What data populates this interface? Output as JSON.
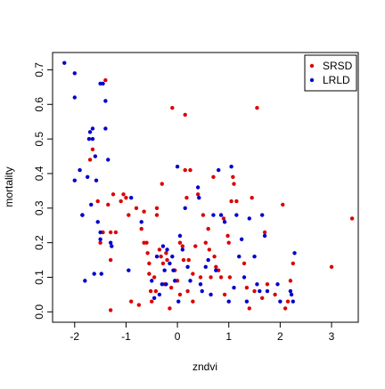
{
  "chart_data": {
    "type": "scatter",
    "title": "",
    "xlabel": "zndvi",
    "ylabel": "mortality",
    "xlim": [
      -2.43,
      3.52
    ],
    "ylim": [
      -0.03,
      0.75
    ],
    "xticks": [
      -2,
      -1,
      0,
      1,
      2,
      3
    ],
    "yticks": [
      0.0,
      0.1,
      0.2,
      0.3,
      0.4,
      0.5,
      0.6,
      0.7
    ],
    "grid": false,
    "legend_position": "top-right",
    "series": [
      {
        "name": "SRSD",
        "color": "#dd0000",
        "points": [
          [
            -1.7,
            0.44
          ],
          [
            -1.65,
            0.47
          ],
          [
            -1.55,
            0.32
          ],
          [
            -1.5,
            0.2
          ],
          [
            -1.45,
            0.23
          ],
          [
            -1.4,
            0.67
          ],
          [
            -1.35,
            0.31
          ],
          [
            -1.3,
            0.23
          ],
          [
            -1.3,
            0.15
          ],
          [
            -1.3,
            0.005
          ],
          [
            -1.25,
            0.34
          ],
          [
            -1.2,
            0.23
          ],
          [
            -1.1,
            0.32
          ],
          [
            -1.05,
            0.34
          ],
          [
            -1.0,
            0.33
          ],
          [
            -0.95,
            0.28
          ],
          [
            -0.9,
            0.03
          ],
          [
            -0.8,
            0.3
          ],
          [
            -0.75,
            0.02
          ],
          [
            -0.7,
            0.24
          ],
          [
            -0.65,
            0.29
          ],
          [
            -0.65,
            0.2
          ],
          [
            -0.6,
            0.2
          ],
          [
            -0.58,
            0.17
          ],
          [
            -0.55,
            0.14
          ],
          [
            -0.55,
            0.11
          ],
          [
            -0.52,
            0.06
          ],
          [
            -0.5,
            0.03
          ],
          [
            -0.45,
            0.1
          ],
          [
            -0.42,
            0.06
          ],
          [
            -0.4,
            0.3
          ],
          [
            -0.4,
            0.28
          ],
          [
            -0.35,
            0.18
          ],
          [
            -0.32,
            0.16
          ],
          [
            -0.3,
            0.37
          ],
          [
            -0.28,
            0.14
          ],
          [
            -0.25,
            0.08
          ],
          [
            -0.22,
            0.17
          ],
          [
            -0.2,
            0.15
          ],
          [
            -0.15,
            0.01
          ],
          [
            -0.12,
            0.07
          ],
          [
            -0.1,
            0.59
          ],
          [
            -0.05,
            0.12
          ],
          [
            0.0,
            0.09
          ],
          [
            0.05,
            0.2
          ],
          [
            0.05,
            0.05
          ],
          [
            0.1,
            0.19
          ],
          [
            0.12,
            0.15
          ],
          [
            0.15,
            0.57
          ],
          [
            0.15,
            0.41
          ],
          [
            0.18,
            0.33
          ],
          [
            0.2,
            0.06
          ],
          [
            0.22,
            0.15
          ],
          [
            0.25,
            0.41
          ],
          [
            0.3,
            0.11
          ],
          [
            0.3,
            0.03
          ],
          [
            0.35,
            0.19
          ],
          [
            0.4,
            0.34
          ],
          [
            0.45,
            0.1
          ],
          [
            0.5,
            0.28
          ],
          [
            0.55,
            0.2
          ],
          [
            0.6,
            0.24
          ],
          [
            0.62,
            0.18
          ],
          [
            0.65,
            0.1
          ],
          [
            0.7,
            0.39
          ],
          [
            0.72,
            0.16
          ],
          [
            0.75,
            0.13
          ],
          [
            0.8,
            0.12
          ],
          [
            0.85,
            0.1
          ],
          [
            0.9,
            0.27
          ],
          [
            0.92,
            0.05
          ],
          [
            0.98,
            0.22
          ],
          [
            1.0,
            0.2
          ],
          [
            1.02,
            0.1
          ],
          [
            1.05,
            0.32
          ],
          [
            1.08,
            0.39
          ],
          [
            1.1,
            0.37
          ],
          [
            1.15,
            0.32
          ],
          [
            1.3,
            0.14
          ],
          [
            1.35,
            0.07
          ],
          [
            1.4,
            0.01
          ],
          [
            1.45,
            0.33
          ],
          [
            1.5,
            0.06
          ],
          [
            1.55,
            0.59
          ],
          [
            1.65,
            0.04
          ],
          [
            1.7,
            0.23
          ],
          [
            1.75,
            0.08
          ],
          [
            1.9,
            0.05
          ],
          [
            2.05,
            0.31
          ],
          [
            2.1,
            0.01
          ],
          [
            2.15,
            0.03
          ],
          [
            2.2,
            0.09
          ],
          [
            2.25,
            0.14
          ],
          [
            3.0,
            0.13
          ],
          [
            3.4,
            0.27
          ]
        ]
      },
      {
        "name": "LRLD",
        "color": "#0000cc",
        "points": [
          [
            -2.2,
            0.72
          ],
          [
            -2.0,
            0.69
          ],
          [
            -2.0,
            0.62
          ],
          [
            -2.0,
            0.38
          ],
          [
            -1.9,
            0.41
          ],
          [
            -1.85,
            0.28
          ],
          [
            -1.85,
            0.28
          ],
          [
            -1.8,
            0.09
          ],
          [
            -1.75,
            0.39
          ],
          [
            -1.72,
            0.5
          ],
          [
            -1.7,
            0.52
          ],
          [
            -1.68,
            0.31
          ],
          [
            -1.65,
            0.53
          ],
          [
            -1.65,
            0.5
          ],
          [
            -1.62,
            0.11
          ],
          [
            -1.6,
            0.45
          ],
          [
            -1.58,
            0.38
          ],
          [
            -1.55,
            0.26
          ],
          [
            -1.5,
            0.66
          ],
          [
            -1.5,
            0.23
          ],
          [
            -1.5,
            0.21
          ],
          [
            -1.48,
            0.11
          ],
          [
            -1.45,
            0.66
          ],
          [
            -1.4,
            0.61
          ],
          [
            -1.4,
            0.53
          ],
          [
            -1.35,
            0.44
          ],
          [
            -1.3,
            0.2
          ],
          [
            -1.28,
            0.19
          ],
          [
            -0.95,
            0.12
          ],
          [
            -0.9,
            0.33
          ],
          [
            -0.7,
            0.26
          ],
          [
            -0.5,
            0.09
          ],
          [
            -0.45,
            0.04
          ],
          [
            -0.4,
            0.16
          ],
          [
            -0.35,
            0.05
          ],
          [
            -0.3,
            0.08
          ],
          [
            -0.28,
            0.19
          ],
          [
            -0.25,
            0.12
          ],
          [
            -0.22,
            0.08
          ],
          [
            -0.2,
            0.18
          ],
          [
            -0.15,
            0.14
          ],
          [
            -0.1,
            0.16
          ],
          [
            -0.08,
            0.12
          ],
          [
            -0.05,
            0.09
          ],
          [
            0.0,
            0.42
          ],
          [
            0.02,
            0.03
          ],
          [
            0.05,
            0.22
          ],
          [
            0.1,
            0.18
          ],
          [
            0.15,
            0.3
          ],
          [
            0.2,
            0.13
          ],
          [
            0.25,
            0.09
          ],
          [
            0.4,
            0.36
          ],
          [
            0.42,
            0.33
          ],
          [
            0.45,
            0.08
          ],
          [
            0.48,
            0.06
          ],
          [
            0.55,
            0.13
          ],
          [
            0.6,
            0.15
          ],
          [
            0.65,
            0.05
          ],
          [
            0.7,
            0.28
          ],
          [
            0.75,
            0.12
          ],
          [
            0.8,
            0.41
          ],
          [
            0.85,
            0.28
          ],
          [
            0.92,
            0.26
          ],
          [
            1.0,
            0.03
          ],
          [
            1.05,
            0.42
          ],
          [
            1.1,
            0.07
          ],
          [
            1.15,
            0.28
          ],
          [
            1.2,
            0.16
          ],
          [
            1.25,
            0.21
          ],
          [
            1.3,
            0.1
          ],
          [
            1.35,
            0.03
          ],
          [
            1.4,
            0.27
          ],
          [
            1.5,
            0.16
          ],
          [
            1.55,
            0.08
          ],
          [
            1.6,
            0.06
          ],
          [
            1.65,
            0.28
          ],
          [
            1.7,
            0.22
          ],
          [
            1.75,
            0.06
          ],
          [
            1.95,
            0.08
          ],
          [
            2.0,
            0.03
          ],
          [
            2.2,
            0.06
          ],
          [
            2.22,
            0.05
          ],
          [
            2.25,
            0.03
          ],
          [
            2.28,
            0.17
          ]
        ]
      }
    ]
  }
}
